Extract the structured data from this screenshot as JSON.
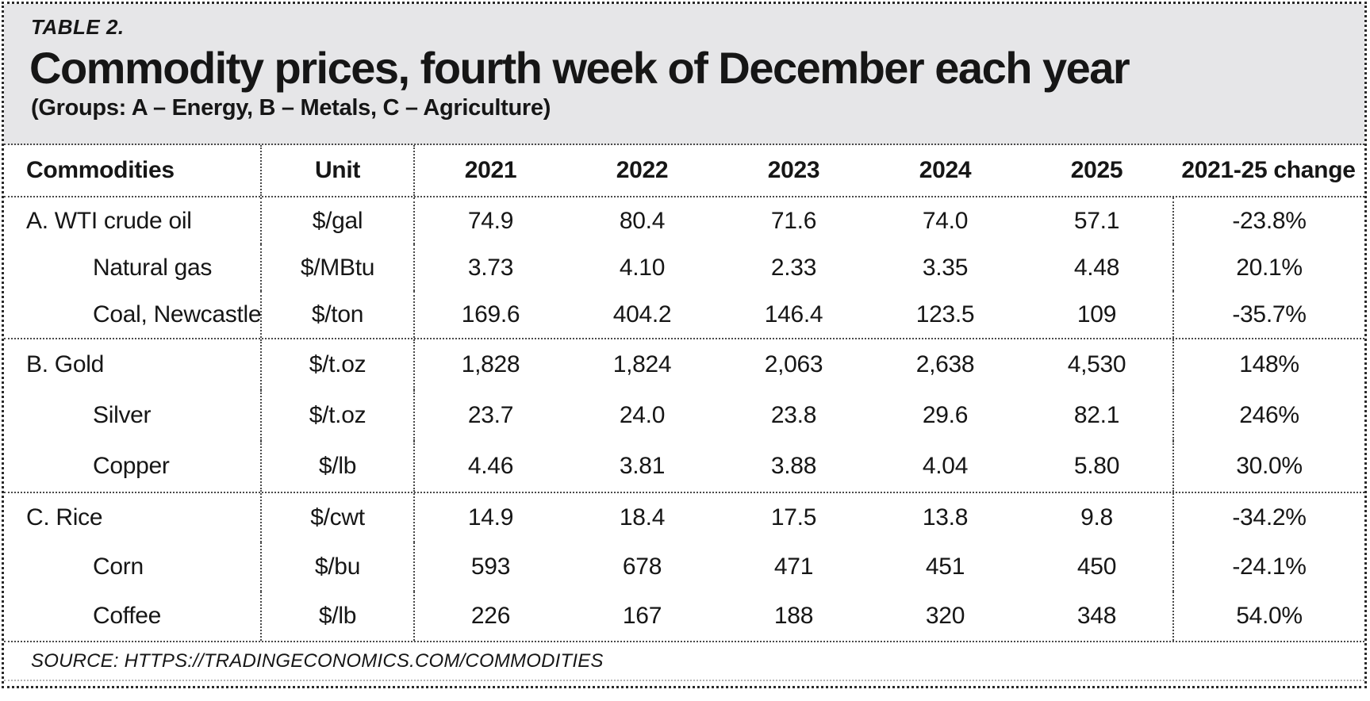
{
  "masthead": {
    "table_label": "TABLE 2.",
    "title": "Commodity prices, fourth week of December each year",
    "subtitle": "(Groups: A – Energy, B – Metals, C – Agriculture)"
  },
  "chart_data": {
    "type": "table",
    "title": "Commodity prices, fourth week of December each year",
    "columns": [
      "Commodities",
      "Unit",
      "2021",
      "2022",
      "2023",
      "2024",
      "2025",
      "2021-25 change"
    ],
    "groups": [
      {
        "group_label": "A",
        "rows": [
          {
            "name": "A. WTI crude oil",
            "indent": false,
            "unit": "$/gal",
            "values": [
              "74.9",
              "80.4",
              "71.6",
              "74.0",
              "57.1"
            ],
            "change": "-23.8%"
          },
          {
            "name": "Natural gas",
            "indent": true,
            "unit": "$/MBtu",
            "values": [
              "3.73",
              "4.10",
              "2.33",
              "3.35",
              "4.48"
            ],
            "change": "20.1%"
          },
          {
            "name": "Coal, Newcastle",
            "indent": true,
            "unit": "$/ton",
            "values": [
              "169.6",
              "404.2",
              "146.4",
              "123.5",
              "109"
            ],
            "change": "-35.7%"
          }
        ]
      },
      {
        "group_label": "B",
        "rows": [
          {
            "name": "B. Gold",
            "indent": false,
            "unit": "$/t.oz",
            "values": [
              "1,828",
              "1,824",
              "2,063",
              "2,638",
              "4,530"
            ],
            "change": "148%"
          },
          {
            "name": "Silver",
            "indent": true,
            "unit": "$/t.oz",
            "values": [
              "23.7",
              "24.0",
              "23.8",
              "29.6",
              "82.1"
            ],
            "change": "246%"
          },
          {
            "name": "Copper",
            "indent": true,
            "unit": "$/lb",
            "values": [
              "4.46",
              "3.81",
              "3.88",
              "4.04",
              "5.80"
            ],
            "change": "30.0%"
          }
        ]
      },
      {
        "group_label": "C",
        "rows": [
          {
            "name": "C. Rice",
            "indent": false,
            "unit": "$/cwt",
            "values": [
              "14.9",
              "18.4",
              "17.5",
              "13.8",
              "9.8"
            ],
            "change": "-34.2%"
          },
          {
            "name": "Corn",
            "indent": true,
            "unit": "$/bu",
            "values": [
              "593",
              "678",
              "471",
              "451",
              "450"
            ],
            "change": "-24.1%"
          },
          {
            "name": "Coffee",
            "indent": true,
            "unit": "$/lb",
            "values": [
              "226",
              "167",
              "188",
              "320",
              "348"
            ],
            "change": "54.0%"
          }
        ]
      }
    ],
    "source": "SOURCE: HTTPS://TRADINGECONOMICS.COM/COMMODITIES"
  },
  "colors": {
    "masthead_bg": "#e6e6e8",
    "text": "#161616",
    "rule": "#4a4a4a",
    "outer_border": "#2a2a2a"
  }
}
